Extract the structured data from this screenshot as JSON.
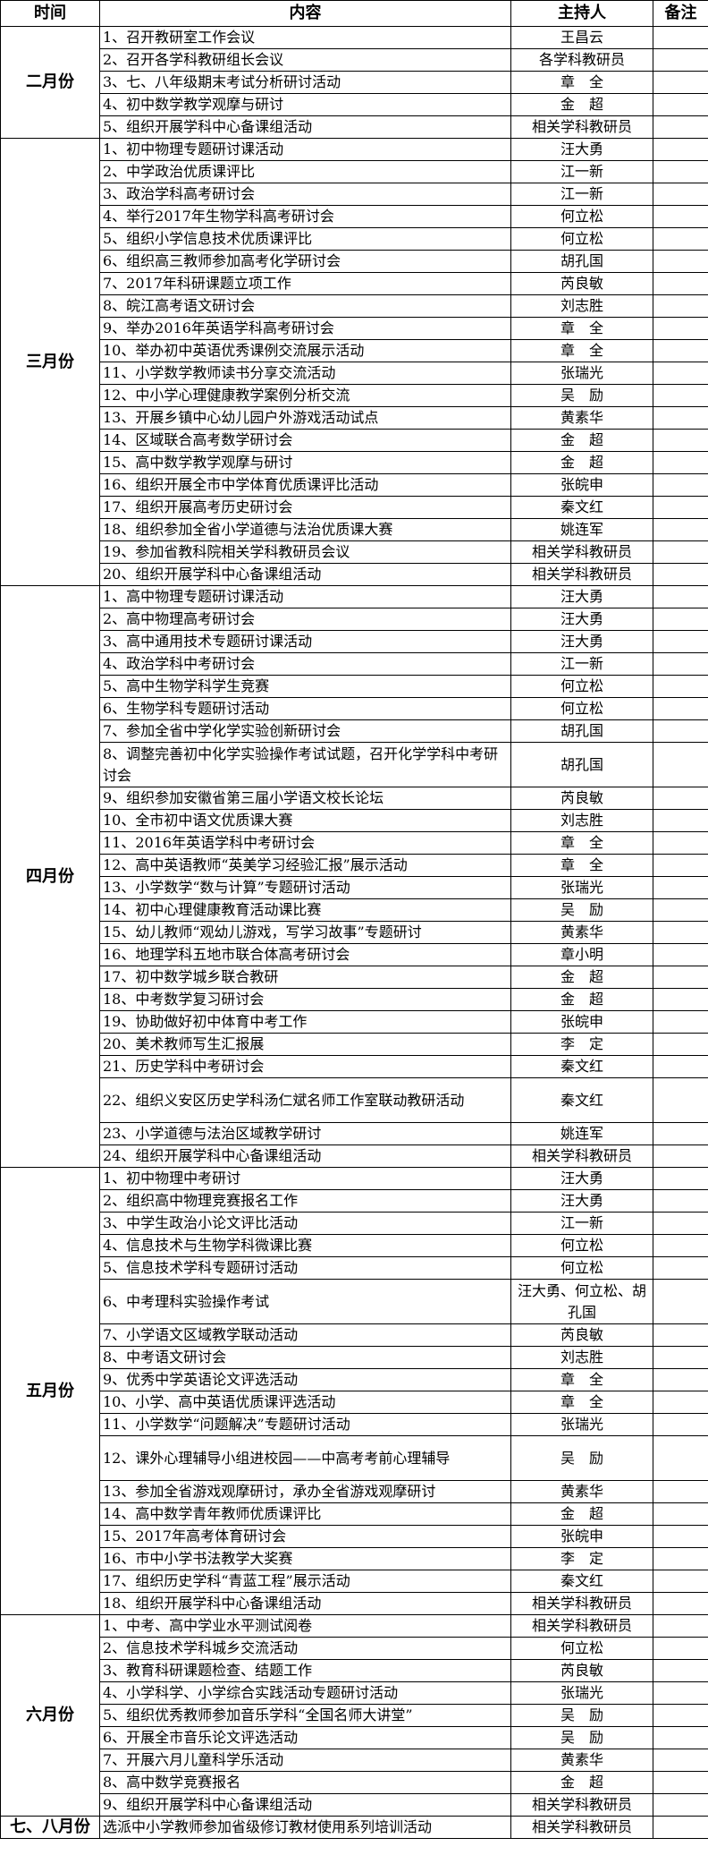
{
  "header": {
    "time": "时间",
    "content": "内容",
    "host": "主持人",
    "notes": "备注"
  },
  "months": [
    {
      "label": "二月份",
      "items": [
        {
          "content": "1、召开教研室工作会议",
          "host": "王昌云"
        },
        {
          "content": "2、召开各学科教研组长会议",
          "host": "各学科教研员"
        },
        {
          "content": "3、七、八年级期末考试分析研讨活动",
          "host": "章　全"
        },
        {
          "content": "4、初中数学教学观摩与研讨",
          "host": "金　超"
        },
        {
          "content": "5、组织开展学科中心备课组活动",
          "host": "相关学科教研员"
        }
      ]
    },
    {
      "label": "三月份",
      "items": [
        {
          "content": "1、初中物理专题研讨课活动",
          "host": "汪大勇"
        },
        {
          "content": "2、中学政治优质课评比",
          "host": "江一新"
        },
        {
          "content": "3、政治学科高考研讨会",
          "host": "江一新"
        },
        {
          "content": "4、举行2017年生物学科高考研讨会",
          "host": "何立松"
        },
        {
          "content": "5、组织小学信息技术优质课评比",
          "host": "何立松"
        },
        {
          "content": "6、组织高三教师参加高考化学研讨会",
          "host": "胡孔国"
        },
        {
          "content": "7、2017年科研课题立项工作",
          "host": "芮良敏"
        },
        {
          "content": "8、皖江高考语文研讨会",
          "host": "刘志胜"
        },
        {
          "content": "9、举办2016年英语学科高考研讨会",
          "host": "章　全"
        },
        {
          "content": "10、举办初中英语优秀课例交流展示活动",
          "host": "章　全"
        },
        {
          "content": "11、小学数学教师读书分享交流活动",
          "host": "张瑞光"
        },
        {
          "content": "12、中小学心理健康教学案例分析交流",
          "host": "吴　励"
        },
        {
          "content": "13、开展乡镇中心幼儿园户外游戏活动试点",
          "host": "黄素华"
        },
        {
          "content": "14、区域联合高考数学研讨会",
          "host": "金　超"
        },
        {
          "content": "15、高中数学教学观摩与研讨",
          "host": "金　超"
        },
        {
          "content": "16、组织开展全市中学体育优质课评比活动",
          "host": "张皖申"
        },
        {
          "content": "17、组织开展高考历史研讨会",
          "host": "秦文红"
        },
        {
          "content": "18、组织参加全省小学道德与法治优质课大赛",
          "host": "姚连军"
        },
        {
          "content": "19、参加省教科院相关学科教研员会议",
          "host": "相关学科教研员"
        },
        {
          "content": "20、组织开展学科中心备课组活动",
          "host": "相关学科教研员"
        }
      ]
    },
    {
      "label": "四月份",
      "items": [
        {
          "content": "1、高中物理专题研讨课活动",
          "host": "汪大勇"
        },
        {
          "content": "2、高中物理高考研讨会",
          "host": "汪大勇"
        },
        {
          "content": "3、高中通用技术专题研讨课活动",
          "host": "汪大勇"
        },
        {
          "content": "4、政治学科中考研讨会",
          "host": "江一新"
        },
        {
          "content": "5、高中生物学科学生竞赛",
          "host": "何立松"
        },
        {
          "content": "6、生物学科专题研讨活动",
          "host": "何立松"
        },
        {
          "content": "7、参加全省中学化学实验创新研讨会",
          "host": "胡孔国"
        },
        {
          "content": "8、调整完善初中化学实验操作考试试题，召开化学学科中考研讨会",
          "host": "胡孔国",
          "tall": true
        },
        {
          "content": "9、组织参加安徽省第三届小学语文校长论坛",
          "host": "芮良敏"
        },
        {
          "content": "10、全市初中语文优质课大赛",
          "host": "刘志胜"
        },
        {
          "content": "11、2016年英语学科中考研讨会",
          "host": "章　全"
        },
        {
          "content": "12、高中英语教师“英美学习经验汇报”展示活动",
          "host": "章　全"
        },
        {
          "content": "13、小学数学“数与计算”专题研讨活动",
          "host": "张瑞光"
        },
        {
          "content": "14、初中心理健康教育活动课比赛",
          "host": "吴　励"
        },
        {
          "content": "15、幼儿教师“观幼儿游戏，写学习故事”专题研讨",
          "host": "黄素华"
        },
        {
          "content": "16、地理学科五地市联合体高考研讨会",
          "host": "章小明"
        },
        {
          "content": "17、初中数学城乡联合教研",
          "host": "金　超"
        },
        {
          "content": "18、中考数学复习研讨会",
          "host": "金　超"
        },
        {
          "content": "19、协助做好初中体育中考工作",
          "host": "张皖申"
        },
        {
          "content": "20、美术教师写生汇报展",
          "host": "李　定"
        },
        {
          "content": "21、历史学科中考研讨会",
          "host": "秦文红"
        },
        {
          "content": "22、组织义安区历史学科汤仁斌名师工作室联动教研活动",
          "host": "秦文红",
          "tall": true
        },
        {
          "content": "23、小学道德与法治区域教学研讨",
          "host": "姚连军"
        },
        {
          "content": "24、组织开展学科中心备课组活动",
          "host": "相关学科教研员"
        }
      ]
    },
    {
      "label": "五月份",
      "items": [
        {
          "content": "1、初中物理中考研讨",
          "host": "汪大勇"
        },
        {
          "content": "2、组织高中物理竞赛报名工作",
          "host": "汪大勇"
        },
        {
          "content": "3、中学生政治小论文评比活动",
          "host": "江一新"
        },
        {
          "content": "4、信息技术与生物学科微课比赛",
          "host": "何立松"
        },
        {
          "content": "5、信息技术学科专题研讨活动",
          "host": "何立松"
        },
        {
          "content": "6、中考理科实验操作考试",
          "host": "汪大勇、何立松、胡孔国",
          "tall": true
        },
        {
          "content": "7、小学语文区域教学联动活动",
          "host": "芮良敏"
        },
        {
          "content": "8、中考语文研讨会",
          "host": "刘志胜"
        },
        {
          "content": "9、优秀中学英语论文评选活动",
          "host": "章　全"
        },
        {
          "content": "10、小学、高中英语优质课评选活动",
          "host": "章　全"
        },
        {
          "content": "11、小学数学“问题解决”专题研讨活动",
          "host": "张瑞光"
        },
        {
          "content": "12、课外心理辅导小组进校园——中高考考前心理辅导",
          "host": "吴　励",
          "tall": true
        },
        {
          "content": "13、参加全省游戏观摩研讨，承办全省游戏观摩研讨",
          "host": "黄素华"
        },
        {
          "content": "14、高中数学青年教师优质课评比",
          "host": "金　超"
        },
        {
          "content": "15、2017年高考体育研讨会",
          "host": "张皖申"
        },
        {
          "content": "16、市中小学书法教学大奖赛",
          "host": "李　定"
        },
        {
          "content": "17、组织历史学科“青蓝工程”展示活动",
          "host": "秦文红"
        },
        {
          "content": "18、组织开展学科中心备课组活动",
          "host": "相关学科教研员"
        }
      ]
    },
    {
      "label": "六月份",
      "items": [
        {
          "content": "1、中考、高中学业水平测试阅卷",
          "host": "相关学科教研员"
        },
        {
          "content": "2、信息技术学科城乡交流活动",
          "host": "何立松"
        },
        {
          "content": "3、教育科研课题检查、结题工作",
          "host": "芮良敏"
        },
        {
          "content": "4、小学科学、小学综合实践活动专题研讨活动",
          "host": "张瑞光"
        },
        {
          "content": "5、组织优秀教师参加音乐学科“全国名师大讲堂”",
          "host": "吴　励"
        },
        {
          "content": "6、开展全市音乐论文评选活动",
          "host": "吴　励"
        },
        {
          "content": "7、开展六月儿童科学乐活动",
          "host": "黄素华"
        },
        {
          "content": "8、高中数学竞赛报名",
          "host": "金　超"
        },
        {
          "content": "9、组织开展学科中心备课组活动",
          "host": "相关学科教研员"
        }
      ]
    },
    {
      "label": "七、八月份",
      "items": [
        {
          "content": "选派中小学教师参加省级修订教材使用系列培训活动",
          "host": "相关学科教研员"
        }
      ]
    }
  ]
}
